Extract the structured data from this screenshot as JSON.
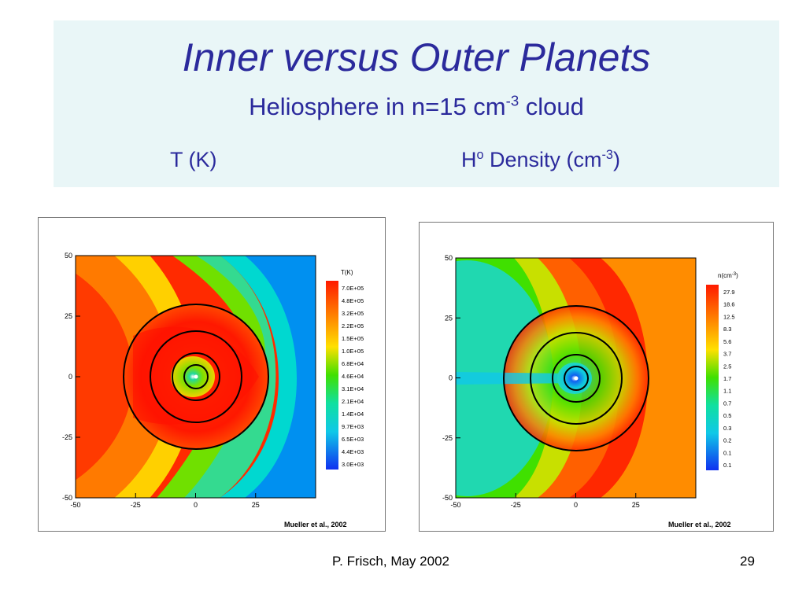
{
  "slide": {
    "title": "Inner versus Outer Planets",
    "subtitle_main": "Heliosphere in n=15 cm",
    "subtitle_sup": "-3",
    "subtitle_tail": " cloud",
    "left_label": "T (K)",
    "right_label_h": "H",
    "right_label_o": "o",
    "right_label_main": " Density (cm",
    "right_label_sup": "-3",
    "right_label_tail": ")",
    "footer_author": "P.  Frisch, May 2002",
    "page_number": "29"
  },
  "colors": {
    "title_text": "#2b2a9c",
    "header_bg": "#e9f6f7"
  },
  "chart_data": [
    {
      "type": "heatmap",
      "quantity": "T(K)",
      "colorbar_label": "T(K)",
      "colorbar_ticks": [
        "7.0E+05",
        "4.8E+05",
        "3.2E+05",
        "2.2E+05",
        "1.5E+05",
        "1.0E+05",
        "6.8E+04",
        "4.6E+04",
        "3.1E+04",
        "2.1E+04",
        "1.4E+04",
        "9.7E+03",
        "6.5E+03",
        "4.4E+03",
        "3.0E+03"
      ],
      "xlim": [
        -50,
        50
      ],
      "ylim": [
        -50,
        50
      ],
      "xticks": [
        "-50",
        "-25",
        "0",
        "25"
      ],
      "yticks": [
        "50",
        "25",
        "0",
        "-25",
        "-50"
      ],
      "orbit_radii": [
        30,
        19,
        10,
        5
      ],
      "credit": "Mueller et al., 2002"
    },
    {
      "type": "heatmap",
      "quantity": "n(cm-3)",
      "colorbar_label": "n(cm",
      "colorbar_label_sup": "-3",
      "colorbar_label_tail": ")",
      "colorbar_ticks": [
        "27.9",
        "18.6",
        "12.5",
        "8.3",
        "5.6",
        "3.7",
        "2.5",
        "1.7",
        "1.1",
        "0.7",
        "0.5",
        "0.3",
        "0.2",
        "0.1",
        "0.1"
      ],
      "xlim": [
        -50,
        50
      ],
      "ylim": [
        -50,
        50
      ],
      "xticks": [
        "-50",
        "-25",
        "0",
        "25"
      ],
      "yticks": [
        "50",
        "25",
        "0",
        "-25",
        "-50"
      ],
      "orbit_radii": [
        30,
        19,
        10,
        5
      ],
      "credit": "Mueller et al., 2002"
    }
  ]
}
